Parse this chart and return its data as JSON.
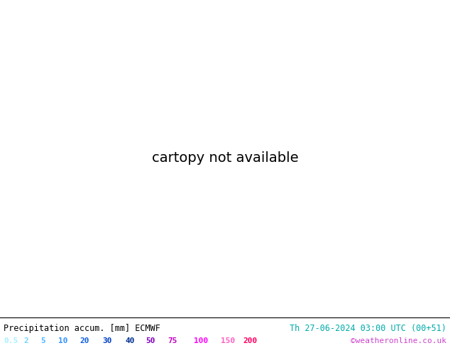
{
  "title_left": "Precipitation accum. [mm] ECMWF",
  "title_right": "Th 27-06-2024 03:00 UTC (00+51)",
  "copyright": "©weatheronline.co.uk",
  "colorbar_values": [
    "0.5",
    "2",
    "5",
    "10",
    "20",
    "30",
    "40",
    "50",
    "75",
    "100",
    "150",
    "200"
  ],
  "colorbar_colors": [
    "#aaf0ff",
    "#78d4ff",
    "#50b4ff",
    "#3090ff",
    "#1060e0",
    "#0040c0",
    "#003090",
    "#8000c0",
    "#c000c0",
    "#ff00ff",
    "#ff60c0",
    "#ff0060"
  ],
  "figsize": [
    6.34,
    4.9
  ],
  "dpi": 100,
  "extent": [
    55,
    205,
    -78,
    22
  ],
  "land_color": "#c8e896",
  "ocean_color": "#a0d0f0",
  "bottom_bg": "#ffffff",
  "title_right_color": "#00aaaa",
  "copyright_color": "#cc44cc",
  "isobar_color_high": "#cc0000",
  "isobar_color_low": "#0000cc",
  "precip_levels": [
    0.5,
    2,
    5,
    10,
    20,
    30,
    40,
    50,
    75,
    100,
    150,
    200,
    300
  ],
  "precip_colors": [
    "#c0f0ff",
    "#90d8ff",
    "#60c0ff",
    "#40a0f8",
    "#2080e8",
    "#0060d0",
    "#0040a0",
    "#400080",
    "#800090",
    "#c000c0",
    "#e040a0",
    "#ff0060"
  ]
}
